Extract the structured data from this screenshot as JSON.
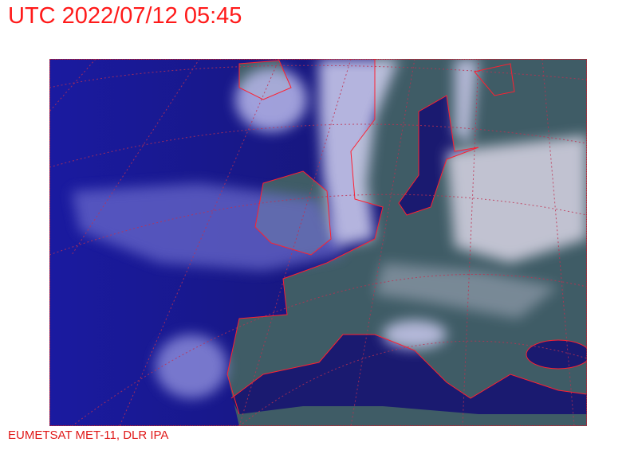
{
  "header": {
    "title": "UTC 2022/07/12 05:45"
  },
  "footer": {
    "credit": "EUMETSAT MET-11, DLR IPA"
  },
  "map": {
    "type": "satellite-composite",
    "region": "Europe / North Atlantic",
    "colors": {
      "ocean": "#15157a",
      "land": "#3f5c66",
      "cloud": "#d8d8f4",
      "coastline": "#ff2030",
      "graticule": "#c03050",
      "frame": "#c02030"
    }
  }
}
